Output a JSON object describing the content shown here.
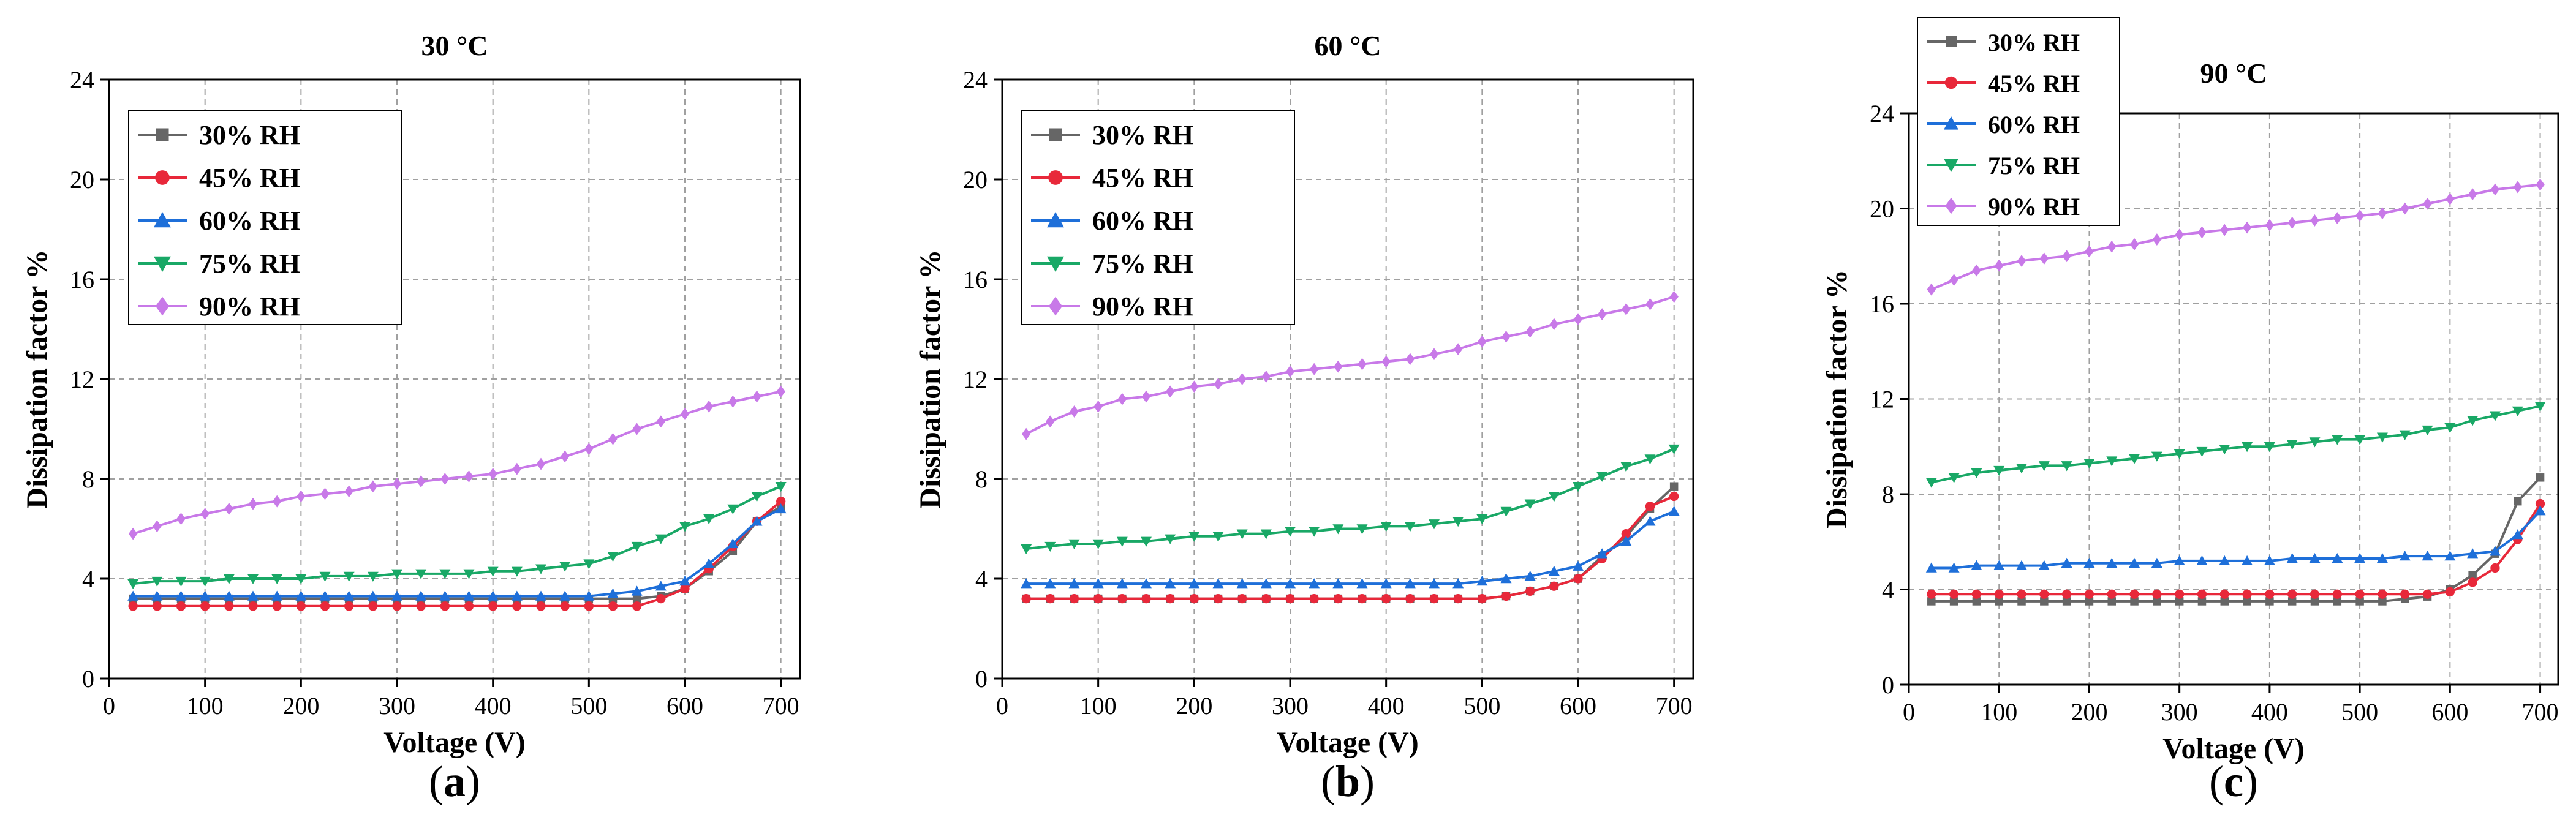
{
  "chart_data": [
    {
      "type": "line",
      "panel_label": "a",
      "title": "30 °C",
      "xlabel": "Voltage (V)",
      "ylabel": "Dissipation factor %",
      "xlim": [
        0,
        720
      ],
      "ylim": [
        0,
        24
      ],
      "xticks": [
        0,
        100,
        200,
        300,
        400,
        500,
        600,
        700
      ],
      "yticks": [
        0,
        4,
        8,
        12,
        16,
        20,
        24
      ],
      "grid": true,
      "legend_position": "top-left",
      "x": [
        25,
        50,
        75,
        100,
        125,
        150,
        175,
        200,
        225,
        250,
        275,
        300,
        325,
        350,
        375,
        400,
        425,
        450,
        475,
        500,
        525,
        550,
        575,
        600,
        625,
        650,
        675,
        700
      ],
      "series": [
        {
          "name": "30% RH",
          "color": "#666666",
          "marker": "square",
          "values": [
            3.2,
            3.2,
            3.2,
            3.2,
            3.2,
            3.2,
            3.2,
            3.2,
            3.2,
            3.2,
            3.2,
            3.2,
            3.2,
            3.2,
            3.2,
            3.2,
            3.2,
            3.2,
            3.2,
            3.2,
            3.2,
            3.2,
            3.3,
            3.6,
            4.3,
            5.1,
            6.3,
            6.9
          ]
        },
        {
          "name": "45% RH",
          "color": "#e8283a",
          "marker": "circle",
          "values": [
            2.9,
            2.9,
            2.9,
            2.9,
            2.9,
            2.9,
            2.9,
            2.9,
            2.9,
            2.9,
            2.9,
            2.9,
            2.9,
            2.9,
            2.9,
            2.9,
            2.9,
            2.9,
            2.9,
            2.9,
            2.9,
            2.9,
            3.2,
            3.6,
            4.4,
            5.3,
            6.3,
            7.1
          ]
        },
        {
          "name": "60% RH",
          "color": "#1e6fd9",
          "marker": "triangle-up",
          "values": [
            3.3,
            3.3,
            3.3,
            3.3,
            3.3,
            3.3,
            3.3,
            3.3,
            3.3,
            3.3,
            3.3,
            3.3,
            3.3,
            3.3,
            3.3,
            3.3,
            3.3,
            3.3,
            3.3,
            3.3,
            3.4,
            3.5,
            3.7,
            3.9,
            4.6,
            5.4,
            6.3,
            6.8
          ]
        },
        {
          "name": "75% RH",
          "color": "#19a866",
          "marker": "triangle-down",
          "values": [
            3.8,
            3.9,
            3.9,
            3.9,
            4.0,
            4.0,
            4.0,
            4.0,
            4.1,
            4.1,
            4.1,
            4.2,
            4.2,
            4.2,
            4.2,
            4.3,
            4.3,
            4.4,
            4.5,
            4.6,
            4.9,
            5.3,
            5.6,
            6.1,
            6.4,
            6.8,
            7.3,
            7.7
          ]
        },
        {
          "name": "90% RH",
          "color": "#c879e8",
          "marker": "diamond",
          "values": [
            5.8,
            6.1,
            6.4,
            6.6,
            6.8,
            7.0,
            7.1,
            7.3,
            7.4,
            7.5,
            7.7,
            7.8,
            7.9,
            8.0,
            8.1,
            8.2,
            8.4,
            8.6,
            8.9,
            9.2,
            9.6,
            10.0,
            10.3,
            10.6,
            10.9,
            11.1,
            11.3,
            11.5
          ]
        }
      ]
    },
    {
      "type": "line",
      "panel_label": "b",
      "title": "60 °C",
      "xlabel": "Voltage (V)",
      "ylabel": "Dissipation factor %",
      "xlim": [
        0,
        720
      ],
      "ylim": [
        0,
        24
      ],
      "xticks": [
        0,
        100,
        200,
        300,
        400,
        500,
        600,
        700
      ],
      "yticks": [
        0,
        4,
        8,
        12,
        16,
        20,
        24
      ],
      "grid": true,
      "legend_position": "top-left",
      "x": [
        25,
        50,
        75,
        100,
        125,
        150,
        175,
        200,
        225,
        250,
        275,
        300,
        325,
        350,
        375,
        400,
        425,
        450,
        475,
        500,
        525,
        550,
        575,
        600,
        625,
        650,
        675,
        700
      ],
      "series": [
        {
          "name": "30% RH",
          "color": "#666666",
          "marker": "square",
          "values": [
            3.2,
            3.2,
            3.2,
            3.2,
            3.2,
            3.2,
            3.2,
            3.2,
            3.2,
            3.2,
            3.2,
            3.2,
            3.2,
            3.2,
            3.2,
            3.2,
            3.2,
            3.2,
            3.2,
            3.2,
            3.3,
            3.5,
            3.7,
            4.0,
            4.9,
            5.7,
            6.8,
            7.7
          ]
        },
        {
          "name": "45% RH",
          "color": "#e8283a",
          "marker": "circle",
          "values": [
            3.2,
            3.2,
            3.2,
            3.2,
            3.2,
            3.2,
            3.2,
            3.2,
            3.2,
            3.2,
            3.2,
            3.2,
            3.2,
            3.2,
            3.2,
            3.2,
            3.2,
            3.2,
            3.2,
            3.2,
            3.3,
            3.5,
            3.7,
            4.0,
            4.8,
            5.8,
            6.9,
            7.3
          ]
        },
        {
          "name": "60% RH",
          "color": "#1e6fd9",
          "marker": "triangle-up",
          "values": [
            3.8,
            3.8,
            3.8,
            3.8,
            3.8,
            3.8,
            3.8,
            3.8,
            3.8,
            3.8,
            3.8,
            3.8,
            3.8,
            3.8,
            3.8,
            3.8,
            3.8,
            3.8,
            3.8,
            3.9,
            4.0,
            4.1,
            4.3,
            4.5,
            5.0,
            5.5,
            6.3,
            6.7
          ]
        },
        {
          "name": "75% RH",
          "color": "#19a866",
          "marker": "triangle-down",
          "values": [
            5.2,
            5.3,
            5.4,
            5.4,
            5.5,
            5.5,
            5.6,
            5.7,
            5.7,
            5.8,
            5.8,
            5.9,
            5.9,
            6.0,
            6.0,
            6.1,
            6.1,
            6.2,
            6.3,
            6.4,
            6.7,
            7.0,
            7.3,
            7.7,
            8.1,
            8.5,
            8.8,
            9.2
          ]
        },
        {
          "name": "90% RH",
          "color": "#c879e8",
          "marker": "diamond",
          "values": [
            9.8,
            10.3,
            10.7,
            10.9,
            11.2,
            11.3,
            11.5,
            11.7,
            11.8,
            12.0,
            12.1,
            12.3,
            12.4,
            12.5,
            12.6,
            12.7,
            12.8,
            13.0,
            13.2,
            13.5,
            13.7,
            13.9,
            14.2,
            14.4,
            14.6,
            14.8,
            15.0,
            15.3
          ]
        }
      ]
    },
    {
      "type": "line",
      "panel_label": "c",
      "title": "90 °C",
      "xlabel": "Voltage (V)",
      "ylabel": "Dissipation factor %",
      "xlim": [
        0,
        720
      ],
      "ylim": [
        0,
        24
      ],
      "xticks": [
        0,
        100,
        200,
        300,
        400,
        500,
        600,
        700
      ],
      "yticks": [
        0,
        4,
        8,
        12,
        16,
        20,
        24
      ],
      "grid": true,
      "legend_position": "top-left (outside, above plot)",
      "x": [
        25,
        50,
        75,
        100,
        125,
        150,
        175,
        200,
        225,
        250,
        275,
        300,
        325,
        350,
        375,
        400,
        425,
        450,
        475,
        500,
        525,
        550,
        575,
        600,
        625,
        650,
        675,
        700
      ],
      "series": [
        {
          "name": "30% RH",
          "color": "#666666",
          "marker": "square",
          "values": [
            3.5,
            3.5,
            3.5,
            3.5,
            3.5,
            3.5,
            3.5,
            3.5,
            3.5,
            3.5,
            3.5,
            3.5,
            3.5,
            3.5,
            3.5,
            3.5,
            3.5,
            3.5,
            3.5,
            3.5,
            3.5,
            3.6,
            3.7,
            4.0,
            4.6,
            5.5,
            7.7,
            8.7
          ]
        },
        {
          "name": "45% RH",
          "color": "#e8283a",
          "marker": "circle",
          "values": [
            3.8,
            3.8,
            3.8,
            3.8,
            3.8,
            3.8,
            3.8,
            3.8,
            3.8,
            3.8,
            3.8,
            3.8,
            3.8,
            3.8,
            3.8,
            3.8,
            3.8,
            3.8,
            3.8,
            3.8,
            3.8,
            3.8,
            3.8,
            3.9,
            4.3,
            4.9,
            6.1,
            7.6
          ]
        },
        {
          "name": "60% RH",
          "color": "#1e6fd9",
          "marker": "triangle-up",
          "values": [
            4.9,
            4.9,
            5.0,
            5.0,
            5.0,
            5.0,
            5.1,
            5.1,
            5.1,
            5.1,
            5.1,
            5.2,
            5.2,
            5.2,
            5.2,
            5.2,
            5.3,
            5.3,
            5.3,
            5.3,
            5.3,
            5.4,
            5.4,
            5.4,
            5.5,
            5.6,
            6.3,
            7.3
          ]
        },
        {
          "name": "75% RH",
          "color": "#19a866",
          "marker": "triangle-down",
          "values": [
            8.5,
            8.7,
            8.9,
            9.0,
            9.1,
            9.2,
            9.2,
            9.3,
            9.4,
            9.5,
            9.6,
            9.7,
            9.8,
            9.9,
            10.0,
            10.0,
            10.1,
            10.2,
            10.3,
            10.3,
            10.4,
            10.5,
            10.7,
            10.8,
            11.1,
            11.3,
            11.5,
            11.7
          ]
        },
        {
          "name": "90% RH",
          "color": "#c879e8",
          "marker": "diamond",
          "values": [
            16.6,
            17.0,
            17.4,
            17.6,
            17.8,
            17.9,
            18.0,
            18.2,
            18.4,
            18.5,
            18.7,
            18.9,
            19.0,
            19.1,
            19.2,
            19.3,
            19.4,
            19.5,
            19.6,
            19.7,
            19.8,
            20.0,
            20.2,
            20.4,
            20.6,
            20.8,
            20.9,
            21.0
          ]
        }
      ]
    }
  ]
}
